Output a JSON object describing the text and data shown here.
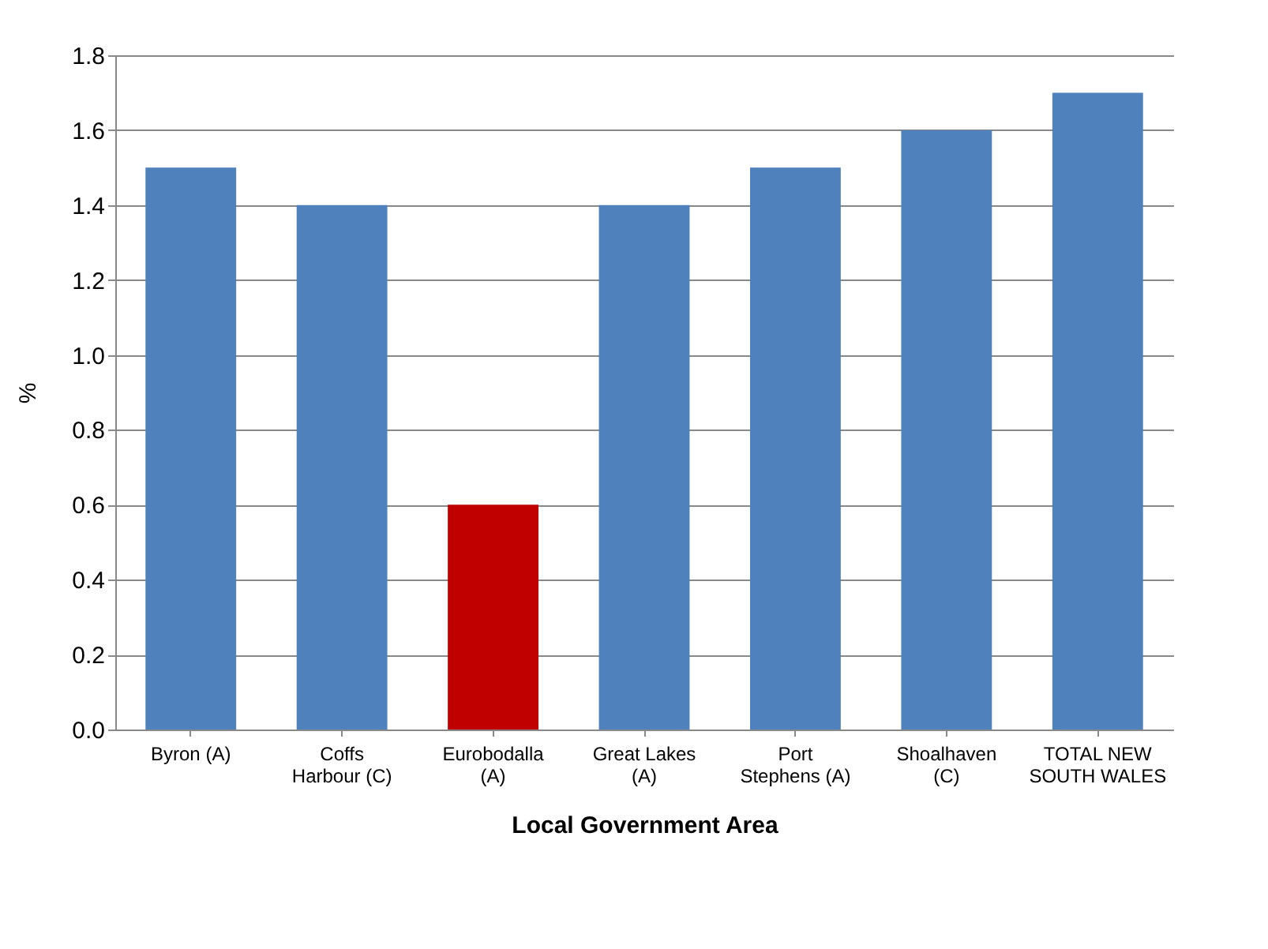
{
  "chart_data": {
    "type": "bar",
    "xlabel": "Local Government Area",
    "ylabel": "%",
    "categories": [
      "Byron (A)",
      "Coffs Harbour (C)",
      "Eurobodalla (A)",
      "Great Lakes (A)",
      "Port Stephens (A)",
      "Shoalhaven (C)",
      "TOTAL NEW SOUTH WALES"
    ],
    "values": [
      1.5,
      1.4,
      0.6,
      1.4,
      1.5,
      1.6,
      1.7
    ],
    "colors": [
      "#4f81bd",
      "#4f81bd",
      "#c00000",
      "#4f81bd",
      "#4f81bd",
      "#4f81bd",
      "#4f81bd"
    ],
    "ylim": [
      0,
      1.8
    ],
    "yticks": [
      {
        "value": 0,
        "label": "0.0"
      },
      0.2,
      0.4,
      0.6,
      0.8,
      {
        "value": 1,
        "label": "1.0"
      },
      1.2,
      1.4,
      1.6,
      1.8
    ],
    "grid": "y"
  }
}
